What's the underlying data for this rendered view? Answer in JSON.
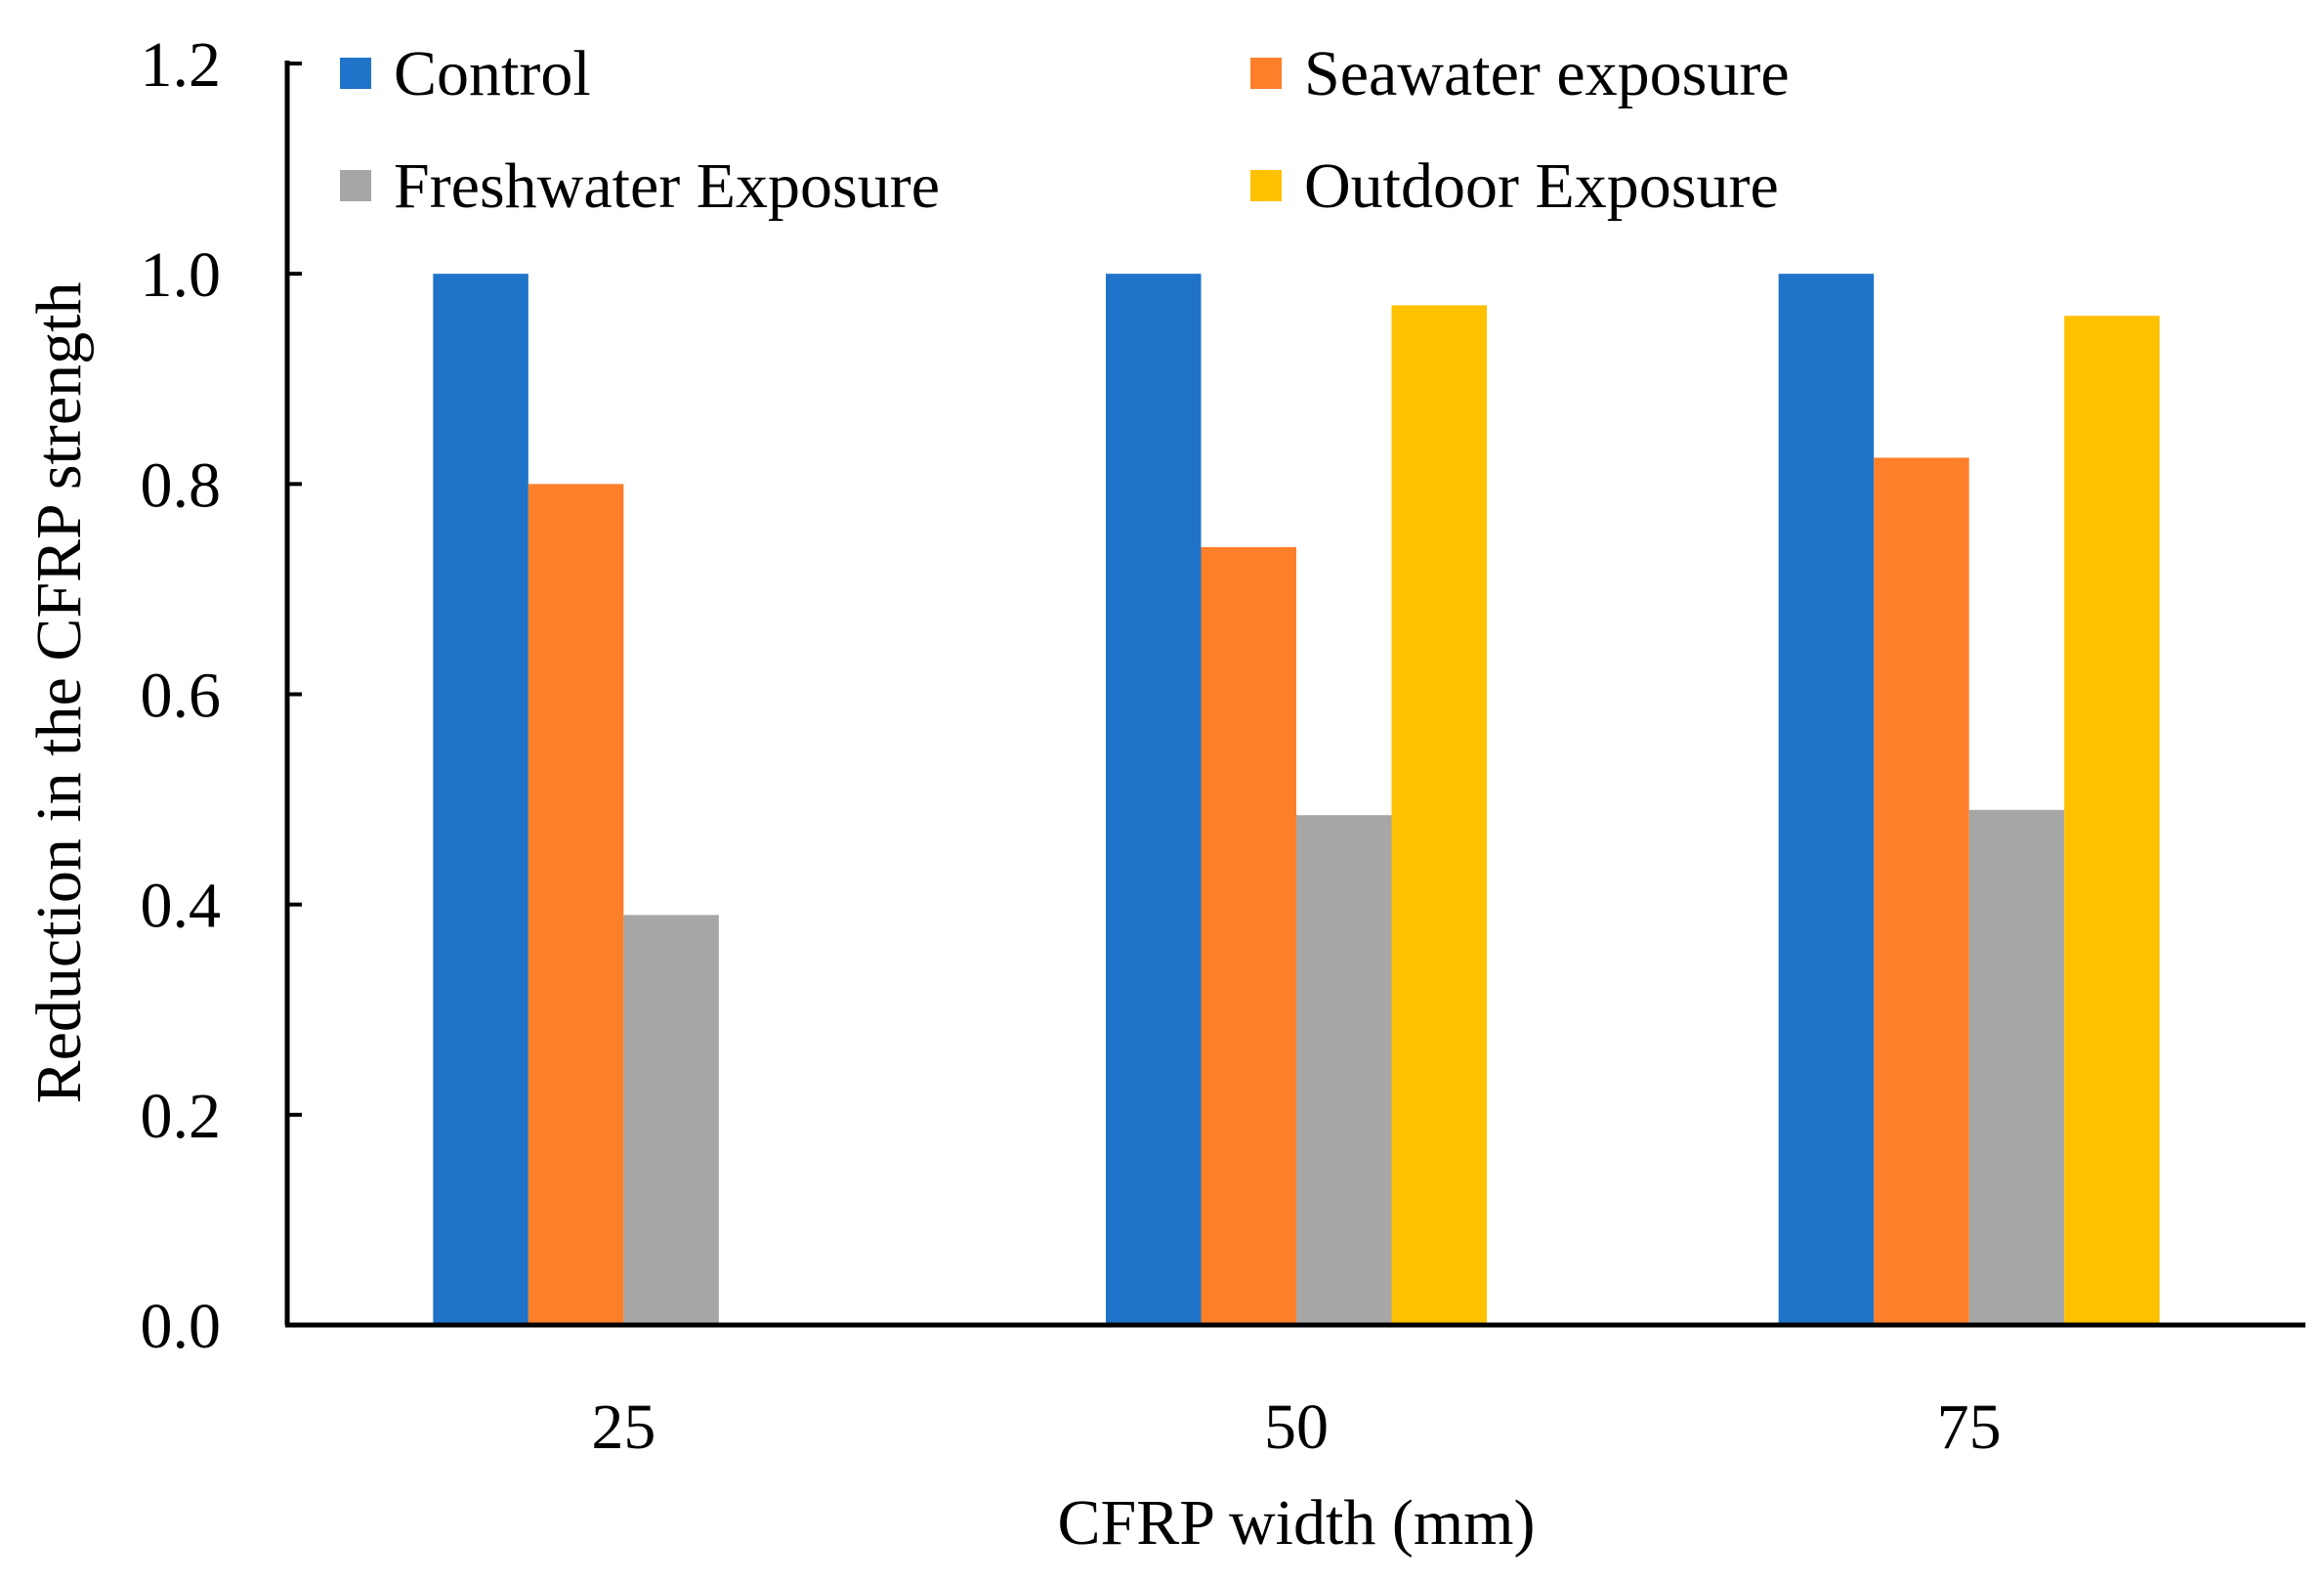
{
  "chart_data": {
    "type": "bar",
    "title": "",
    "xlabel": "CFRP width (mm)",
    "ylabel": "Reduction in the CFRP strength",
    "categories": [
      "25",
      "50",
      "75"
    ],
    "ylim": [
      0,
      1.2
    ],
    "yticks": [
      "0.0",
      "0.2",
      "0.4",
      "0.6",
      "0.8",
      "1.0",
      "1.2"
    ],
    "grid": false,
    "legend_position": "top",
    "series": [
      {
        "name": "Control",
        "color": "#1f73c9",
        "values": [
          1.0,
          1.0,
          1.0
        ]
      },
      {
        "name": "Seawater exposure",
        "color": "#fd7f2a",
        "values": [
          0.8,
          0.74,
          0.825
        ]
      },
      {
        "name": "Freshwater Exposure",
        "color": "#a6a6a6",
        "values": [
          0.39,
          0.485,
          0.49
        ]
      },
      {
        "name": "Outdoor Exposure",
        "color": "#ffc000",
        "values": [
          null,
          0.97,
          0.96
        ]
      }
    ]
  }
}
